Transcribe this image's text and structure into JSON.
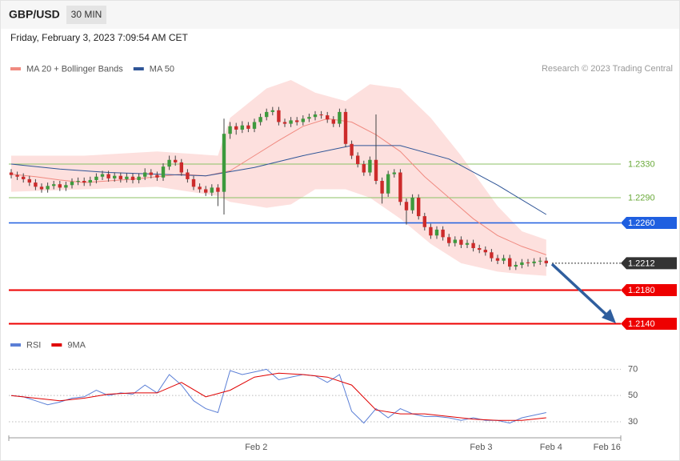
{
  "header": {
    "symbol": "GBP/USD",
    "interval": "30 MIN",
    "timestamp": "Friday, February 3, 2023 7:09:54 AM CET"
  },
  "credit": "Research © 2023 Trading Central",
  "chart_data": [
    {
      "type": "candlestick",
      "xlim": [
        0,
        100
      ],
      "ylim": [
        1.2125,
        1.243
      ],
      "up_color": "#3d9a3d",
      "down_color": "#cc2b2b",
      "ohlc": [
        [
          1.232,
          1.2324,
          1.2313,
          1.2317
        ],
        [
          1.2317,
          1.2321,
          1.2311,
          1.2315
        ],
        [
          1.2315,
          1.2319,
          1.2308,
          1.2312
        ],
        [
          1.2312,
          1.2316,
          1.2304,
          1.2308
        ],
        [
          1.2308,
          1.2312,
          1.2299,
          1.2303
        ],
        [
          1.2303,
          1.2307,
          1.2296,
          1.23
        ],
        [
          1.23,
          1.2308,
          1.2296,
          1.2304
        ],
        [
          1.2304,
          1.231,
          1.23,
          1.2306
        ],
        [
          1.2306,
          1.231,
          1.2298,
          1.2302
        ],
        [
          1.2302,
          1.2309,
          1.2298,
          1.2305
        ],
        [
          1.2305,
          1.2313,
          1.2301,
          1.2309
        ],
        [
          1.2309,
          1.2314,
          1.2305,
          1.231
        ],
        [
          1.231,
          1.2314,
          1.2304,
          1.2308
        ],
        [
          1.2308,
          1.2315,
          1.2304,
          1.2311
        ],
        [
          1.2311,
          1.2319,
          1.2307,
          1.2315
        ],
        [
          1.2315,
          1.2322,
          1.2311,
          1.2318
        ],
        [
          1.2318,
          1.2322,
          1.2309,
          1.2313
        ],
        [
          1.2313,
          1.232,
          1.2309,
          1.2316
        ],
        [
          1.2316,
          1.232,
          1.2308,
          1.2312
        ],
        [
          1.2312,
          1.2319,
          1.2308,
          1.2315
        ],
        [
          1.2315,
          1.2319,
          1.2307,
          1.2311
        ],
        [
          1.2311,
          1.2319,
          1.2307,
          1.2315
        ],
        [
          1.2315,
          1.2325,
          1.2311,
          1.232
        ],
        [
          1.232,
          1.2324,
          1.2313,
          1.2317
        ],
        [
          1.2317,
          1.2321,
          1.231,
          1.2314
        ],
        [
          1.2314,
          1.2331,
          1.231,
          1.2327
        ],
        [
          1.2327,
          1.234,
          1.2323,
          1.2335
        ],
        [
          1.2335,
          1.234,
          1.2328,
          1.2332
        ],
        [
          1.2332,
          1.2336,
          1.2316,
          1.232
        ],
        [
          1.232,
          1.2324,
          1.2308,
          1.2312
        ],
        [
          1.2312,
          1.2316,
          1.2299,
          1.2303
        ],
        [
          1.2303,
          1.2307,
          1.2296,
          1.23
        ],
        [
          1.23,
          1.2304,
          1.2292,
          1.2296
        ],
        [
          1.2296,
          1.2306,
          1.2292,
          1.2302
        ],
        [
          1.2302,
          1.2306,
          1.228,
          1.2297
        ],
        [
          1.2297,
          1.2384,
          1.227,
          1.2366
        ],
        [
          1.2366,
          1.238,
          1.236,
          1.2375
        ],
        [
          1.2375,
          1.2379,
          1.2365,
          1.2371
        ],
        [
          1.2371,
          1.2381,
          1.2367,
          1.2376
        ],
        [
          1.2376,
          1.238,
          1.2368,
          1.2372
        ],
        [
          1.2372,
          1.2384,
          1.2368,
          1.238
        ],
        [
          1.238,
          1.239,
          1.2376,
          1.2386
        ],
        [
          1.2386,
          1.2396,
          1.2382,
          1.2392
        ],
        [
          1.2392,
          1.2398,
          1.2388,
          1.2394
        ],
        [
          1.2394,
          1.2398,
          1.2376,
          1.238
        ],
        [
          1.238,
          1.2384,
          1.2374,
          1.2378
        ],
        [
          1.2378,
          1.2386,
          1.2374,
          1.2382
        ],
        [
          1.2382,
          1.2386,
          1.2376,
          1.238
        ],
        [
          1.238,
          1.2388,
          1.2376,
          1.2384
        ],
        [
          1.2384,
          1.239,
          1.238,
          1.2386
        ],
        [
          1.2386,
          1.2393,
          1.2382,
          1.2389
        ],
        [
          1.2389,
          1.2393,
          1.2384,
          1.2388
        ],
        [
          1.2388,
          1.2392,
          1.2379,
          1.2383
        ],
        [
          1.2383,
          1.2387,
          1.2374,
          1.2378
        ],
        [
          1.2378,
          1.2396,
          1.2374,
          1.2392
        ],
        [
          1.2392,
          1.2396,
          1.235,
          1.2354
        ],
        [
          1.2354,
          1.2358,
          1.2336,
          1.234
        ],
        [
          1.234,
          1.2344,
          1.2326,
          1.233
        ],
        [
          1.233,
          1.2334,
          1.2316,
          1.232
        ],
        [
          1.232,
          1.2339,
          1.2316,
          1.2335
        ],
        [
          1.2335,
          1.2389,
          1.2306,
          1.231
        ],
        [
          1.231,
          1.2314,
          1.2283,
          1.2295
        ],
        [
          1.2295,
          1.2322,
          1.2291,
          1.2318
        ],
        [
          1.2318,
          1.2324,
          1.2314,
          1.232
        ],
        [
          1.232,
          1.2324,
          1.2281,
          1.2285
        ],
        [
          1.2285,
          1.2289,
          1.2258,
          1.2275
        ],
        [
          1.2275,
          1.2294,
          1.2271,
          1.229
        ],
        [
          1.229,
          1.2294,
          1.2264,
          1.2268
        ],
        [
          1.2268,
          1.2272,
          1.2251,
          1.2255
        ],
        [
          1.2255,
          1.2259,
          1.2241,
          1.2245
        ],
        [
          1.2245,
          1.2256,
          1.2241,
          1.2252
        ],
        [
          1.2252,
          1.2256,
          1.2239,
          1.2243
        ],
        [
          1.2243,
          1.2247,
          1.2232,
          1.2236
        ],
        [
          1.2236,
          1.2244,
          1.2232,
          1.224
        ],
        [
          1.224,
          1.2244,
          1.223,
          1.2234
        ],
        [
          1.2234,
          1.224,
          1.223,
          1.2236
        ],
        [
          1.2236,
          1.224,
          1.2226,
          1.223
        ],
        [
          1.223,
          1.2234,
          1.2224,
          1.2228
        ],
        [
          1.2228,
          1.2232,
          1.2221,
          1.2225
        ],
        [
          1.2225,
          1.2229,
          1.2214,
          1.2218
        ],
        [
          1.2218,
          1.2222,
          1.2211,
          1.2215
        ],
        [
          1.2215,
          1.2222,
          1.2211,
          1.2218
        ],
        [
          1.2218,
          1.2222,
          1.2204,
          1.2208
        ],
        [
          1.2208,
          1.2214,
          1.2204,
          1.221
        ],
        [
          1.221,
          1.2217,
          1.2206,
          1.2213
        ],
        [
          1.2213,
          1.2217,
          1.2208,
          1.2212
        ],
        [
          1.2212,
          1.2218,
          1.2208,
          1.2214
        ],
        [
          1.2214,
          1.2219,
          1.221,
          1.2215
        ],
        [
          1.2215,
          1.2219,
          1.2208,
          1.2212
        ]
      ],
      "bollinger": {
        "color": "#fde0de",
        "x": [
          0,
          12,
          24,
          34,
          36,
          42,
          46,
          50,
          55,
          59,
          64,
          69,
          74,
          80,
          84,
          88
        ],
        "upper": [
          1.234,
          1.234,
          1.2345,
          1.234,
          1.2385,
          1.242,
          1.243,
          1.2415,
          1.2405,
          1.2425,
          1.242,
          1.2385,
          1.234,
          1.228,
          1.225,
          1.224
        ],
        "lower": [
          1.2297,
          1.23,
          1.2303,
          1.2292,
          1.2285,
          1.2278,
          1.2282,
          1.23,
          1.23,
          1.229,
          1.2265,
          1.2235,
          1.2212,
          1.2202,
          1.2199,
          1.2197
        ]
      },
      "series": [
        {
          "name": "MA 20 + Bollinger Bands",
          "color": "#f08a80",
          "x": [
            0,
            4,
            8,
            12,
            16,
            20,
            24,
            28,
            32,
            36,
            40,
            44,
            48,
            52,
            56,
            60,
            64,
            68,
            72,
            76,
            80,
            84,
            88
          ],
          "values": [
            1.2318,
            1.2315,
            1.2311,
            1.2308,
            1.231,
            1.2312,
            1.2315,
            1.2318,
            1.2316,
            1.2322,
            1.234,
            1.2358,
            1.2375,
            1.2384,
            1.238,
            1.2365,
            1.2345,
            1.2315,
            1.229,
            1.2265,
            1.2245,
            1.2232,
            1.2222
          ]
        },
        {
          "name": "MA 50",
          "color": "#2f5597",
          "x": [
            0,
            8,
            16,
            24,
            32,
            40,
            48,
            56,
            64,
            72,
            80,
            88
          ],
          "values": [
            1.233,
            1.2324,
            1.232,
            1.2318,
            1.2316,
            1.2326,
            1.234,
            1.2352,
            1.2352,
            1.2336,
            1.2305,
            1.227
          ]
        }
      ],
      "levels": [
        {
          "value": 1.233,
          "label": "1.2330",
          "color": "#8cc265",
          "line": "solid",
          "width": 1,
          "badge": false
        },
        {
          "value": 1.229,
          "label": "1.2290",
          "color": "#8cc265",
          "line": "solid",
          "width": 1,
          "badge": false
        },
        {
          "value": 1.226,
          "label": "1.2260",
          "color": "#1f5fe0",
          "line": "solid",
          "width": 1.5,
          "badge": true
        },
        {
          "value": 1.2212,
          "label": "1.2212",
          "color": "#333333",
          "line": "dotted",
          "width": 1,
          "badge": true
        },
        {
          "value": 1.218,
          "label": "1.2180",
          "color": "#ee0000",
          "line": "solid",
          "width": 2,
          "badge": true
        },
        {
          "value": 1.214,
          "label": "1.2140",
          "color": "#ee0000",
          "line": "solid",
          "width": 2,
          "badge": true
        }
      ]
    },
    {
      "type": "line",
      "xlim": [
        0,
        100
      ],
      "ylim": [
        19,
        80
      ],
      "yticks": [
        70,
        50,
        30
      ],
      "xticks": [
        {
          "value": 40.3,
          "label": "Feb 2"
        },
        {
          "value": 77.3,
          "label": "Feb 3"
        },
        {
          "value": 88.8,
          "label": "Feb 4"
        },
        {
          "value": 98,
          "label": "Feb 16"
        }
      ],
      "series": [
        {
          "name": "RSI",
          "color": "#5b7fd6",
          "x": [
            0,
            2,
            4,
            6,
            8,
            10,
            12,
            14,
            16,
            18,
            20,
            22,
            24,
            26,
            28,
            30,
            32,
            34,
            36,
            38,
            40,
            42,
            44,
            46,
            48,
            50,
            52,
            54,
            56,
            58,
            60,
            62,
            64,
            66,
            68,
            70,
            72,
            74,
            76,
            78,
            80,
            82,
            84,
            86,
            88
          ],
          "values": [
            50,
            49,
            46,
            43,
            45,
            48,
            49,
            54,
            50,
            52,
            51,
            58,
            52,
            66,
            58,
            46,
            40,
            37,
            69,
            66,
            68,
            70,
            62,
            64,
            66,
            65,
            60,
            66,
            38,
            29,
            40,
            33,
            40,
            36,
            34,
            34,
            33,
            31,
            33,
            31,
            31,
            29,
            33,
            35,
            37
          ]
        },
        {
          "name": "9MA",
          "color": "#e00000",
          "x": [
            0,
            4,
            8,
            12,
            16,
            20,
            24,
            28,
            32,
            36,
            40,
            44,
            48,
            52,
            56,
            60,
            64,
            68,
            72,
            76,
            80,
            84,
            88
          ],
          "values": [
            50,
            48,
            46,
            48,
            51,
            52,
            52,
            60,
            49,
            54,
            64,
            67,
            66,
            64,
            58,
            39,
            36,
            36,
            34,
            32,
            31,
            31,
            33
          ]
        }
      ]
    }
  ]
}
